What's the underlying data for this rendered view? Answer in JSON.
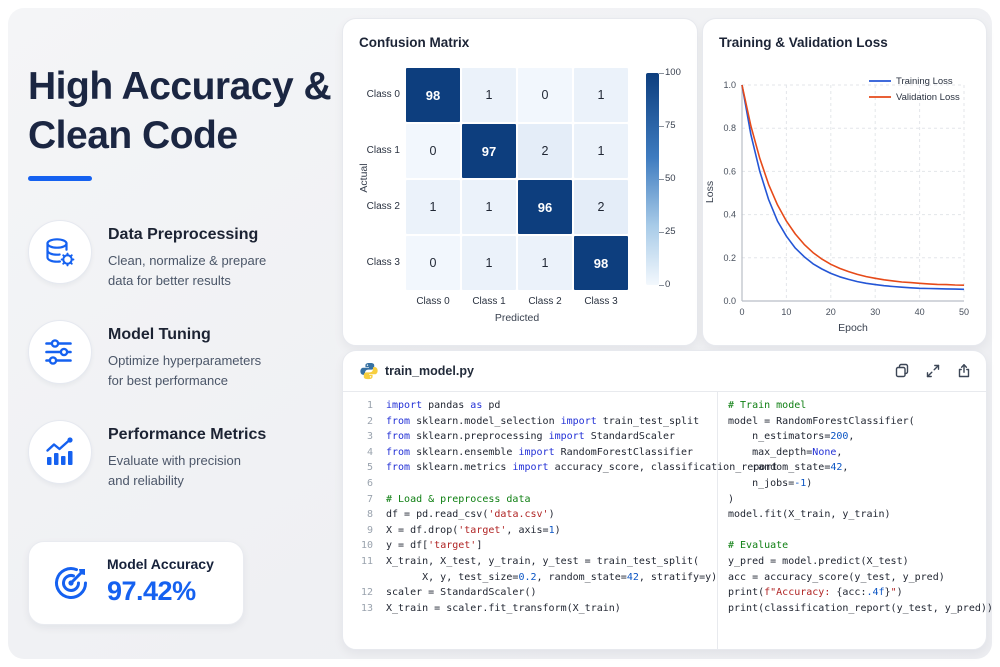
{
  "accent": "#1561f0",
  "hero": {
    "title_line1": "High Accuracy &",
    "title_line2": "Clean Code"
  },
  "features": [
    {
      "icon": "database-gear-icon",
      "title": "Data Preprocessing",
      "desc1": "Clean, normalize & prepare",
      "desc2": "data for better results"
    },
    {
      "icon": "sliders-icon",
      "title": "Model Tuning",
      "desc1": "Optimize hyperparameters",
      "desc2": "for best performance"
    },
    {
      "icon": "chart-growth-icon",
      "title": "Performance Metrics",
      "desc1": "Evaluate with precision",
      "desc2": "and reliability"
    }
  ],
  "accuracy_card": {
    "icon": "target-icon",
    "label": "Model Accuracy",
    "value": "97.42%"
  },
  "chart_data": [
    {
      "type": "heatmap",
      "title": "Confusion Matrix",
      "xlabel": "Predicted",
      "ylabel": "Actual",
      "x_categories": [
        "Class 0",
        "Class 1",
        "Class 2",
        "Class 3"
      ],
      "y_categories": [
        "Class 0",
        "Class 1",
        "Class 2",
        "Class 3"
      ],
      "values": [
        [
          98,
          1,
          0,
          1
        ],
        [
          0,
          97,
          2,
          1
        ],
        [
          1,
          1,
          96,
          2
        ],
        [
          0,
          1,
          1,
          98
        ]
      ],
      "colorbar": {
        "min": 0,
        "max": 100,
        "ticks": [
          "100",
          "75",
          "50",
          "25",
          "0"
        ],
        "color_high": "#0d3e7e",
        "color_low": "#f3f8fd"
      }
    },
    {
      "type": "line",
      "title": "Training & Validation Loss",
      "xlabel": "Epoch",
      "ylabel": "Loss",
      "xlim": [
        0,
        50
      ],
      "ylim": [
        0,
        1
      ],
      "x_ticks": [
        "0",
        "10",
        "20",
        "30",
        "40",
        "50"
      ],
      "y_ticks": [
        "0.0",
        "0.2",
        "0.4",
        "0.6",
        "0.8",
        "1.0"
      ],
      "grid": true,
      "legend_position": "top-right",
      "x": [
        0,
        2,
        4,
        6,
        8,
        10,
        12,
        14,
        16,
        18,
        20,
        22,
        24,
        26,
        28,
        30,
        32,
        34,
        36,
        38,
        40,
        42,
        44,
        46,
        48,
        50
      ],
      "series": [
        {
          "name": "Training Loss",
          "color": "#2456d6",
          "values": [
            1.0,
            0.77,
            0.6,
            0.47,
            0.37,
            0.3,
            0.245,
            0.205,
            0.172,
            0.148,
            0.128,
            0.112,
            0.1,
            0.09,
            0.082,
            0.076,
            0.071,
            0.067,
            0.064,
            0.061,
            0.059,
            0.058,
            0.057,
            0.056,
            0.055,
            0.054
          ]
        },
        {
          "name": "Validation Loss",
          "color": "#e64a19",
          "values": [
            1.0,
            0.81,
            0.66,
            0.54,
            0.445,
            0.37,
            0.31,
            0.262,
            0.224,
            0.194,
            0.17,
            0.151,
            0.136,
            0.123,
            0.113,
            0.105,
            0.098,
            0.093,
            0.088,
            0.085,
            0.082,
            0.079,
            0.077,
            0.076,
            0.074,
            0.073
          ]
        }
      ]
    }
  ],
  "code_panel": {
    "icon": "python-icon",
    "filename": "train_model.py",
    "toolbar": [
      {
        "name": "copy-icon"
      },
      {
        "name": "expand-icon"
      },
      {
        "name": "share-icon"
      }
    ],
    "left_lines": [
      {
        "n": "1",
        "toks": [
          [
            "k",
            "import"
          ],
          [
            "p",
            " pandas "
          ],
          [
            "k",
            "as"
          ],
          [
            "p",
            " pd"
          ]
        ]
      },
      {
        "n": "2",
        "toks": [
          [
            "k",
            "from"
          ],
          [
            "p",
            " sklearn.model_selection "
          ],
          [
            "k",
            "import"
          ],
          [
            "p",
            " train_test_split"
          ]
        ]
      },
      {
        "n": "3",
        "toks": [
          [
            "k",
            "from"
          ],
          [
            "p",
            " sklearn.preprocessing "
          ],
          [
            "k",
            "import"
          ],
          [
            "p",
            " StandardScaler"
          ]
        ]
      },
      {
        "n": "4",
        "toks": [
          [
            "k",
            "from"
          ],
          [
            "p",
            " sklearn.ensemble "
          ],
          [
            "k",
            "import"
          ],
          [
            "p",
            " RandomForestClassifier"
          ]
        ]
      },
      {
        "n": "5",
        "toks": [
          [
            "k",
            "from"
          ],
          [
            "p",
            " sklearn.metrics "
          ],
          [
            "k",
            "import"
          ],
          [
            "p",
            " accuracy_score, classification_report"
          ]
        ]
      },
      {
        "n": "6",
        "toks": []
      },
      {
        "n": "7",
        "toks": [
          [
            "c",
            "# Load & preprocess data"
          ]
        ]
      },
      {
        "n": "8",
        "toks": [
          [
            "p",
            "df = pd.read_csv("
          ],
          [
            "s",
            "'data.csv'"
          ],
          [
            "p",
            ")"
          ]
        ]
      },
      {
        "n": "9",
        "toks": [
          [
            "p",
            "X = df.drop("
          ],
          [
            "s",
            "'target'"
          ],
          [
            "p",
            ", axis="
          ],
          [
            "n",
            "1"
          ],
          [
            "p",
            ")"
          ]
        ]
      },
      {
        "n": "10",
        "toks": [
          [
            "p",
            "y = df["
          ],
          [
            "s",
            "'target'"
          ],
          [
            "p",
            "]"
          ]
        ]
      },
      {
        "n": "11",
        "toks": [
          [
            "p",
            "X_train, X_test, y_train, y_test = train_test_split("
          ]
        ]
      },
      {
        "n": "",
        "toks": [
          [
            "p",
            "      X, y, test_size="
          ],
          [
            "n",
            "0.2"
          ],
          [
            "p",
            ", random_state="
          ],
          [
            "n",
            "42"
          ],
          [
            "p",
            ", stratify=y)"
          ]
        ]
      },
      {
        "n": "12",
        "toks": [
          [
            "p",
            "scaler = StandardScaler()"
          ]
        ]
      },
      {
        "n": "13",
        "toks": [
          [
            "p",
            "X_train = scaler.fit_transform(X_train)"
          ]
        ]
      }
    ],
    "right_lines": [
      {
        "toks": [
          [
            "c",
            "# Train model"
          ]
        ]
      },
      {
        "toks": [
          [
            "p",
            "model = RandomForestClassifier("
          ]
        ]
      },
      {
        "toks": [
          [
            "p",
            "    n_estimators="
          ],
          [
            "n",
            "200"
          ],
          [
            "p",
            ","
          ]
        ]
      },
      {
        "toks": [
          [
            "p",
            "    max_depth="
          ],
          [
            "k",
            "None"
          ],
          [
            "p",
            ","
          ]
        ]
      },
      {
        "toks": [
          [
            "p",
            "    random_state="
          ],
          [
            "n",
            "42"
          ],
          [
            "p",
            ","
          ]
        ]
      },
      {
        "toks": [
          [
            "p",
            "    n_jobs="
          ],
          [
            "n",
            "-1"
          ],
          [
            "p",
            ")"
          ]
        ]
      },
      {
        "toks": [
          [
            "p",
            ")"
          ]
        ]
      },
      {
        "toks": [
          [
            "p",
            "model.fit(X_train, y_train)"
          ]
        ]
      },
      {
        "toks": []
      },
      {
        "toks": [
          [
            "c",
            "# Evaluate"
          ]
        ]
      },
      {
        "toks": [
          [
            "p",
            "y_pred = model.predict(X_test)"
          ]
        ]
      },
      {
        "toks": [
          [
            "p",
            "acc = accuracy_score(y_test, y_pred)"
          ]
        ]
      },
      {
        "toks": [
          [
            "p",
            "print("
          ],
          [
            "s",
            "f\"Accuracy: "
          ],
          [
            "p",
            "{acc:"
          ],
          [
            "n",
            ".4f"
          ],
          [
            "p",
            "}"
          ],
          [
            "s",
            "\""
          ],
          [
            "p",
            ")"
          ]
        ]
      },
      {
        "toks": [
          [
            "p",
            "print(classification_report(y_test, y_pred))"
          ]
        ]
      }
    ]
  }
}
